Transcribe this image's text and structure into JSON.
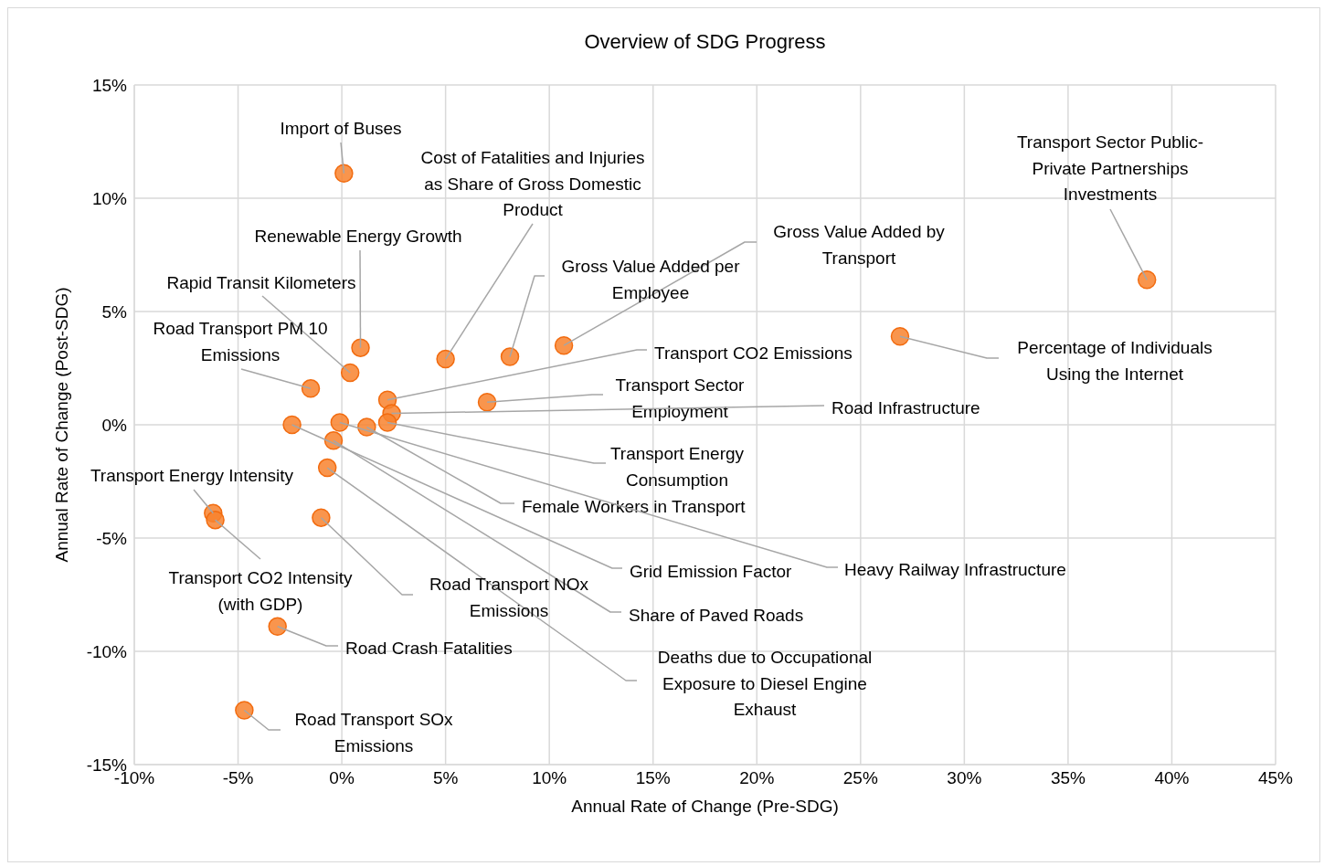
{
  "chart_data": {
    "type": "scatter",
    "title": "Overview of SDG Progress",
    "xlabel": "Annual Rate of Change (Pre-SDG)",
    "ylabel": "Annual Rate of Change (Post-SDG)",
    "x": [
      0.1,
      38.8,
      26.9,
      10.7,
      8.1,
      5.0,
      0.9,
      0.4,
      -1.5,
      2.2,
      7.0,
      2.4,
      2.2,
      1.2,
      -0.1,
      -2.4,
      -0.4,
      -0.7,
      -1.0,
      -6.2,
      -6.1,
      -3.1,
      -4.7
    ],
    "series": [
      {
        "color": "#f8822e",
        "values": [
          11.1,
          6.4,
          3.9,
          3.5,
          3.0,
          2.9,
          3.4,
          2.3,
          1.6,
          1.1,
          1.0,
          0.5,
          0.1,
          -0.1,
          0.1,
          0.0,
          -0.7,
          -1.9,
          -4.1,
          -3.9,
          -4.2,
          -8.9,
          -12.6
        ]
      }
    ],
    "xlim": [
      -10,
      45
    ],
    "ylim": [
      -15,
      15
    ],
    "xticks": [
      {
        "value": -10,
        "label": "-10%"
      },
      {
        "value": -5,
        "label": "-5%"
      },
      {
        "value": 0,
        "label": "0%"
      },
      {
        "value": 5,
        "label": "5%"
      },
      {
        "value": 10,
        "label": "10%"
      },
      {
        "value": 15,
        "label": "15%"
      },
      {
        "value": 20,
        "label": "20%"
      },
      {
        "value": 25,
        "label": "25%"
      },
      {
        "value": 30,
        "label": "30%"
      },
      {
        "value": 35,
        "label": "35%"
      },
      {
        "value": 40,
        "label": "40%"
      },
      {
        "value": 45,
        "label": "45%"
      }
    ],
    "yticks": [
      {
        "value": -15,
        "label": "-15%"
      },
      {
        "value": -10,
        "label": "-10%"
      },
      {
        "value": -5,
        "label": "-5%"
      },
      {
        "value": 0,
        "label": "0%"
      },
      {
        "value": 5,
        "label": "5%"
      },
      {
        "value": 10,
        "label": "10%"
      },
      {
        "value": 15,
        "label": "15%"
      }
    ],
    "grid": true,
    "legend": false,
    "marker": "circle",
    "annotations": [
      {
        "text": "Import of Buses",
        "x": 0.1,
        "y": 11.1
      },
      {
        "text": "Transport Sector Public-Private Partnerships Investments",
        "x": 38.8,
        "y": 6.4
      },
      {
        "text": "Percentage of Individuals Using the Internet",
        "x": 26.9,
        "y": 3.9
      },
      {
        "text": "Gross Value Added by Transport",
        "x": 10.7,
        "y": 3.5
      },
      {
        "text": "Gross Value Added per Employee",
        "x": 8.1,
        "y": 3.0
      },
      {
        "text": "Cost of Fatalities and Injuries as Share of Gross Domestic Product",
        "x": 5.0,
        "y": 2.9
      },
      {
        "text": "Renewable Energy Growth",
        "x": 0.9,
        "y": 3.4
      },
      {
        "text": "Rapid Transit Kilometers",
        "x": 0.4,
        "y": 2.3
      },
      {
        "text": "Road Transport PM 10 Emissions",
        "x": -1.5,
        "y": 1.6
      },
      {
        "text": "Transport CO2 Emissions",
        "x": 2.2,
        "y": 1.1
      },
      {
        "text": "Transport Sector Employment",
        "x": 7.0,
        "y": 1.0
      },
      {
        "text": "Road Infrastructure",
        "x": 2.4,
        "y": 0.5
      },
      {
        "text": "Transport Energy Consumption",
        "x": 2.2,
        "y": 0.1
      },
      {
        "text": "Female Workers in Transport",
        "x": 1.2,
        "y": -0.1
      },
      {
        "text": "Heavy Railway Infrastructure",
        "x": -0.1,
        "y": 0.1
      },
      {
        "text": "Grid Emission Factor",
        "x": -2.4,
        "y": 0.0
      },
      {
        "text": "Share of Paved Roads",
        "x": -0.4,
        "y": -0.7
      },
      {
        "text": "Deaths due to Occupational Exposure to Diesel Engine Exhaust",
        "x": -0.7,
        "y": -1.9
      },
      {
        "text": "Road Transport NOx Emissions",
        "x": -1.0,
        "y": -4.1
      },
      {
        "text": "Transport Energy Intensity",
        "x": -6.2,
        "y": -3.9
      },
      {
        "text": "Transport CO2 Intensity (with GDP)",
        "x": -6.1,
        "y": -4.2
      },
      {
        "text": "Road Crash Fatalities",
        "x": -3.1,
        "y": -8.9
      },
      {
        "text": "Road Transport SOx Emissions",
        "x": -4.7,
        "y": -12.6
      }
    ]
  }
}
